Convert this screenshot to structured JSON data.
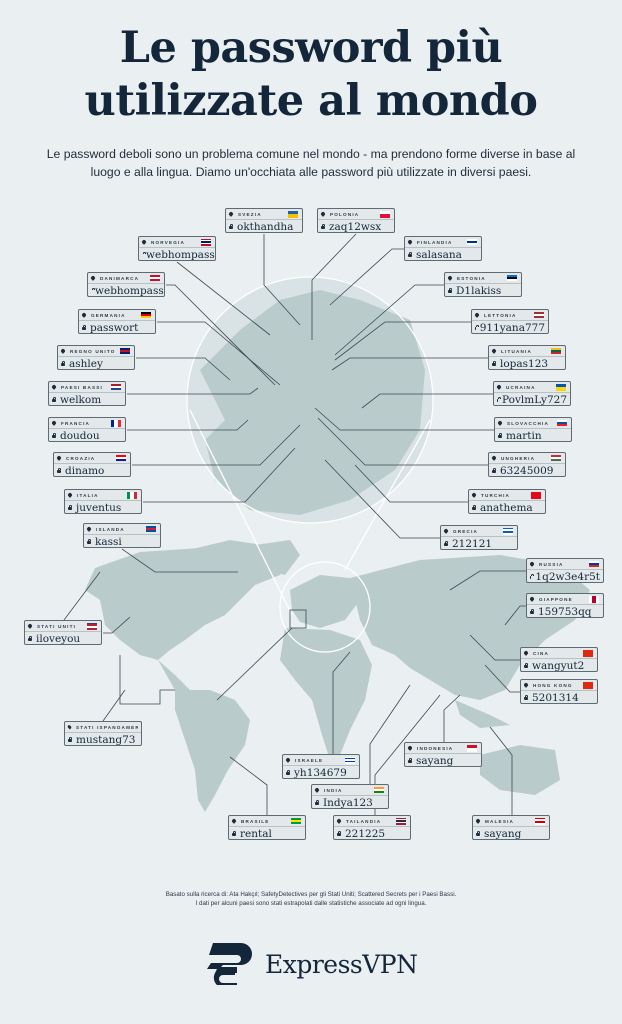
{
  "title_line1": "Le password più",
  "title_line2": "utilizzate al mondo",
  "subtitle": "Le password deboli sono un problema comune nel mondo - ma prendono forme diverse in base al luogo e alla lingua. Diamo un'occhiata alle password più utilizzate in diversi paesi.",
  "colors": {
    "background": "#eaeff1",
    "land": "#b9cccb",
    "text": "#13263a",
    "card": "#e3e9eb"
  },
  "icons": {
    "country": "map-pin-icon",
    "password": "lock-icon"
  },
  "countries": [
    {
      "country": "SVEZIA",
      "password": "okthandha",
      "flag": [
        "#1f5fb0",
        "#f2c200"
      ],
      "flag_dir": "h"
    },
    {
      "country": "POLONIA",
      "password": "zaq12wsx",
      "flag": [
        "#ffffff",
        "#dc143c"
      ],
      "flag_dir": "h"
    },
    {
      "country": "NORVEGIA",
      "password": "webhompass",
      "flag": [
        "#ba0c2f",
        "#ffffff",
        "#00205b",
        "#ffffff",
        "#ba0c2f"
      ],
      "flag_dir": "h"
    },
    {
      "country": "FINLANDIA",
      "password": "salasana",
      "flag": [
        "#ffffff",
        "#003580",
        "#ffffff"
      ],
      "flag_dir": "h"
    },
    {
      "country": "DANIMARCA",
      "password": "webhompass",
      "flag": [
        "#c8102e",
        "#ffffff",
        "#c8102e"
      ],
      "flag_dir": "h"
    },
    {
      "country": "ESTONIA",
      "password": "D1lakiss",
      "flag": [
        "#0072ce",
        "#000000",
        "#ffffff"
      ],
      "flag_dir": "h"
    },
    {
      "country": "GERMANIA",
      "password": "passwort",
      "flag": [
        "#000000",
        "#dd0000",
        "#ffce00"
      ],
      "flag_dir": "h"
    },
    {
      "country": "LETTONIA",
      "password": "911yana777",
      "flag": [
        "#9e3039",
        "#ffffff",
        "#9e3039"
      ],
      "flag_dir": "h"
    },
    {
      "country": "REGNO UNITO",
      "password": "ashley",
      "flag": [
        "#012169",
        "#c8102e",
        "#012169"
      ],
      "flag_dir": "h"
    },
    {
      "country": "LITUANIA",
      "password": "lopas123",
      "flag": [
        "#fdb913",
        "#006a44",
        "#c1272d"
      ],
      "flag_dir": "h"
    },
    {
      "country": "PAESI BASSI",
      "password": "welkom",
      "flag": [
        "#ae1c28",
        "#ffffff",
        "#21468b"
      ],
      "flag_dir": "h"
    },
    {
      "country": "UCRAINA",
      "password": "PovlmLy727",
      "flag": [
        "#0057b7",
        "#ffd700"
      ],
      "flag_dir": "h"
    },
    {
      "country": "FRANCIA",
      "password": "doudou",
      "flag": [
        "#002395",
        "#ffffff",
        "#ed2939"
      ],
      "flag_dir": "v"
    },
    {
      "country": "SLOVACCHIA",
      "password": "martin",
      "flag": [
        "#ffffff",
        "#0b4ea2",
        "#ee1c25"
      ],
      "flag_dir": "h"
    },
    {
      "country": "CROAZIA",
      "password": "dinamo",
      "flag": [
        "#ff0000",
        "#ffffff",
        "#171796"
      ],
      "flag_dir": "h"
    },
    {
      "country": "UNGHERIA",
      "password": "63245009",
      "flag": [
        "#ce2939",
        "#ffffff",
        "#477050"
      ],
      "flag_dir": "h"
    },
    {
      "country": "ITALIA",
      "password": "juventus",
      "flag": [
        "#009246",
        "#ffffff",
        "#ce2b37"
      ],
      "flag_dir": "v"
    },
    {
      "country": "TURCHIA",
      "password": "anathema",
      "flag": [
        "#e30a17"
      ],
      "flag_dir": "h"
    },
    {
      "country": "ISLANDA",
      "password": "kassi",
      "flag": [
        "#02529c",
        "#dc1e35",
        "#02529c"
      ],
      "flag_dir": "h"
    },
    {
      "country": "GRECIA",
      "password": "212121",
      "flag": [
        "#0d5eaf",
        "#ffffff",
        "#0d5eaf",
        "#ffffff"
      ],
      "flag_dir": "h"
    },
    {
      "country": "RUSSIA",
      "password": "1q2w3e4r5t",
      "flag": [
        "#ffffff",
        "#0039a6",
        "#d52b1e"
      ],
      "flag_dir": "h"
    },
    {
      "country": "STATI UNITI",
      "password": "iloveyou",
      "flag": [
        "#3c3b6e",
        "#b22234",
        "#ffffff",
        "#b22234"
      ],
      "flag_dir": "h"
    },
    {
      "country": "GIAPPONE",
      "password": "159753qq",
      "flag": [
        "#ffffff",
        "#bc002d",
        "#ffffff"
      ],
      "flag_dir": "v"
    },
    {
      "country": "CINA",
      "password": "wangyut2",
      "flag": [
        "#de2910"
      ],
      "flag_dir": "h"
    },
    {
      "country": "HONG KONG",
      "password": "5201314",
      "flag": [
        "#de2910"
      ],
      "flag_dir": "h"
    },
    {
      "country": "STATI ISPANOAMERICANI",
      "password": "mustang73",
      "flag": [],
      "flag_dir": "h"
    },
    {
      "country": "INDONESIA",
      "password": "sayang",
      "flag": [
        "#ce1126",
        "#ffffff"
      ],
      "flag_dir": "h"
    },
    {
      "country": "ISRAELE",
      "password": "yh134679",
      "flag": [
        "#ffffff",
        "#0038b8",
        "#ffffff",
        "#0038b8",
        "#ffffff"
      ],
      "flag_dir": "h"
    },
    {
      "country": "INDIA",
      "password": "Indya123",
      "flag": [
        "#ff9933",
        "#ffffff",
        "#138808"
      ],
      "flag_dir": "h"
    },
    {
      "country": "BRASILE",
      "password": "rental",
      "flag": [
        "#009c3b",
        "#ffdf00",
        "#009c3b"
      ],
      "flag_dir": "h"
    },
    {
      "country": "TAILANDIA",
      "password": "221225",
      "flag": [
        "#a51931",
        "#f4f5f8",
        "#2d2a4a",
        "#f4f5f8",
        "#a51931"
      ],
      "flag_dir": "h"
    },
    {
      "country": "MALESIA",
      "password": "sayang",
      "flag": [
        "#cc0001",
        "#ffffff",
        "#cc0001",
        "#ffffff"
      ],
      "flag_dir": "h"
    }
  ],
  "source_line1": "Basato sulla ricerca di: Ata Hakçıl; SafetyDetectives per gli Stati Uniti; Scattered Secrets per i Paesi Bassi.",
  "source_line2": "I dati per alcuni paesi sono stati estrapolati dalle statistiche associate ad ogni lingua.",
  "logo": "ExpressVPN"
}
